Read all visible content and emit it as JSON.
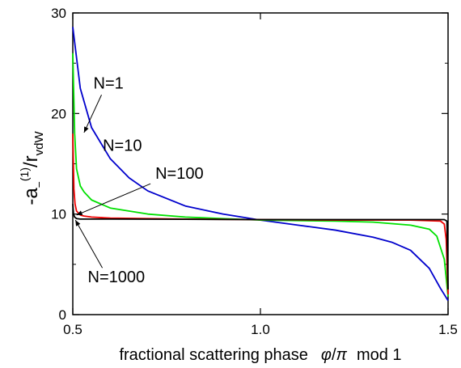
{
  "chart_data": {
    "type": "line",
    "xlabel": {
      "prefix": "fractional scattering phase",
      "phi": "φ",
      "pi": "π",
      "suffix": "mod 1"
    },
    "ylabel": {
      "a": "-a",
      "minus_sub": "−",
      "paren_sup": "(1)",
      "r": "/r",
      "sub": "vdW"
    },
    "xlim": [
      0.5,
      1.5
    ],
    "ylim": [
      0,
      30
    ],
    "x_ticks": [
      0.5,
      1.0,
      1.5
    ],
    "x_tick_labels": [
      "0.5",
      "1.0",
      "1.5"
    ],
    "y_ticks": [
      0,
      10,
      20,
      30
    ],
    "y_tick_labels": [
      "0",
      "10",
      "20",
      "30"
    ],
    "grid": false,
    "series": [
      {
        "name": "N=1",
        "color": "#0000cc",
        "x": [
          0.5,
          0.52,
          0.55,
          0.6,
          0.65,
          0.7,
          0.8,
          0.9,
          1.0,
          1.1,
          1.2,
          1.3,
          1.35,
          1.4,
          1.45,
          1.48,
          1.5
        ],
        "y": [
          28.6,
          22.5,
          18.6,
          15.5,
          13.6,
          12.3,
          10.8,
          10.0,
          9.4,
          8.9,
          8.4,
          7.7,
          7.2,
          6.4,
          4.6,
          2.6,
          1.4
        ]
      },
      {
        "name": "N=10",
        "color": "#00e000",
        "x": [
          0.5,
          0.505,
          0.51,
          0.52,
          0.53,
          0.55,
          0.6,
          0.7,
          0.8,
          1.0,
          1.2,
          1.3,
          1.4,
          1.45,
          1.47,
          1.49,
          1.5
        ],
        "y": [
          26.0,
          18.0,
          14.5,
          12.8,
          12.2,
          11.4,
          10.6,
          10.0,
          9.7,
          9.4,
          9.3,
          9.2,
          8.9,
          8.5,
          7.8,
          5.5,
          1.8
        ]
      },
      {
        "name": "N=100",
        "color": "#ee0000",
        "x": [
          0.5,
          0.503,
          0.506,
          0.51,
          0.52,
          0.53,
          0.55,
          0.6,
          0.8,
          1.0,
          1.2,
          1.4,
          1.48,
          1.49,
          1.495,
          1.5
        ],
        "y": [
          18.0,
          12.5,
          11.0,
          10.3,
          9.9,
          9.8,
          9.7,
          9.6,
          9.5,
          9.45,
          9.4,
          9.4,
          9.3,
          9.0,
          7.5,
          2.0
        ]
      },
      {
        "name": "N=1000",
        "color": "#000000",
        "x": [
          0.5,
          0.502,
          0.505,
          0.51,
          0.52,
          0.6,
          0.8,
          1.0,
          1.2,
          1.4,
          1.49,
          1.497,
          1.5
        ],
        "y": [
          11.0,
          10.0,
          9.7,
          9.55,
          9.5,
          9.5,
          9.48,
          9.45,
          9.45,
          9.45,
          9.45,
          9.3,
          2.5
        ]
      }
    ],
    "annotations": [
      {
        "text": "N=1",
        "x": 0.555,
        "y": 22.5,
        "arrow_to": [
          0.53,
          18.1
        ]
      },
      {
        "text": "N=10",
        "x": 0.58,
        "y": 16.3
      },
      {
        "text": "N=100",
        "x": 0.72,
        "y": 13.5,
        "arrow_to": [
          0.51,
          9.9
        ]
      },
      {
        "text": "N=1000",
        "x": 0.54,
        "y": 3.2,
        "arrow_to": [
          0.507,
          9.4
        ]
      }
    ]
  }
}
